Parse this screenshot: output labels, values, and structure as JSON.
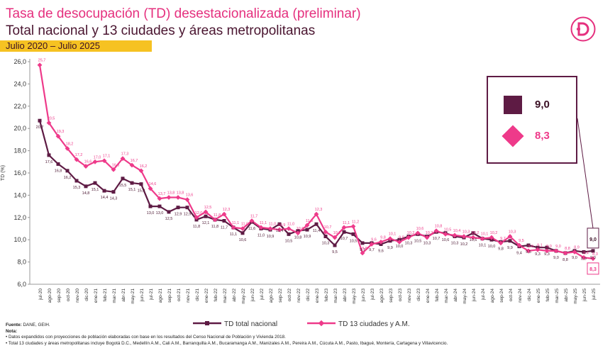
{
  "header": {
    "title": "Tasa de desocupación (TD) desestacionalizada (preliminar)",
    "subtitle": "Total nacional y 13 ciudades y áreas metropolitanas",
    "period": "Julio 2020 – Julio 2025"
  },
  "colors": {
    "series1": "#5e1b44",
    "series2": "#ee3a8a",
    "accent": "#f6c222"
  },
  "callout": {
    "value1": "9,0",
    "value2": "8,3"
  },
  "footer": {
    "source_label": "Fuente:",
    "source": " DANE, GEIH.",
    "note_label": "Nota",
    "note_colon": ":",
    "note1": "• Datos expandidos con proyecciones de población elaboradas con base en los resultados del Censo Nacional de Población y Vivienda 2018.",
    "note2": "• Total 13 ciudades y áreas metropolitanas incluye Bogotá D.C., Medellín A.M., Cali A.M., Barranquilla A.M., Bucaramanga A.M., Manizales A.M., Pereira A.M., Cúcuta A.M., Pasto, Ibagué, Montería, Cartagena y Villavicencio."
  },
  "chart_data": {
    "type": "line",
    "title": "Tasa de desocupación (TD) desestacionalizada (preliminar)",
    "ylabel": "TD (%)",
    "ylim": [
      6.0,
      26.0
    ],
    "yticks": [
      "6,0",
      "8,0",
      "10,0",
      "12,0",
      "14,0",
      "16,0",
      "18,0",
      "20,0",
      "22,0",
      "24,0",
      "26,0"
    ],
    "grid": false,
    "legend": "bottom",
    "x": [
      "jul-20",
      "ago-20",
      "sep-20",
      "oct-20",
      "nov-20",
      "dic-20",
      "ene-21",
      "feb-21",
      "mar-21",
      "abr-21",
      "may-21",
      "jun-21",
      "jul-21",
      "ago-21",
      "sep-21",
      "oct-21",
      "nov-21",
      "dic-21",
      "ene-22",
      "feb-22",
      "mar-22",
      "abr-22",
      "may-22",
      "jun-22",
      "jul-22",
      "ago-22",
      "sep-22",
      "oct-22",
      "nov-22",
      "dic-22",
      "ene-23",
      "feb-23",
      "mar-23",
      "abr-23",
      "may-23",
      "jun-23",
      "jul-23",
      "ago-23",
      "sep-23",
      "oct-23",
      "nov-23",
      "dic-23",
      "ene-24",
      "feb-24",
      "mar-24",
      "abr-24",
      "may-24",
      "jun-24",
      "jul-24",
      "ago-24",
      "sep-24",
      "oct-24",
      "nov-24",
      "dic-24",
      "ene-25",
      "feb-25",
      "mar-25",
      "abr-25",
      "may-25",
      "jun-25",
      "jul-25"
    ],
    "series": [
      {
        "name": "TD total nacional",
        "values": [
          20.7,
          17.6,
          16.8,
          16.2,
          15.3,
          14.8,
          15.1,
          14.4,
          14.3,
          15.5,
          15.1,
          15.0,
          13.0,
          13.0,
          12.5,
          12.9,
          12.9,
          11.8,
          12.1,
          11.8,
          11.7,
          11.1,
          10.6,
          11.6,
          11.0,
          10.9,
          11.4,
          10.5,
          10.8,
          10.9,
          11.4,
          10.3,
          9.5,
          10.7,
          10.5,
          9.7,
          9.7,
          9.6,
          9.9,
          10.0,
          10.3,
          10.5,
          10.3,
          10.7,
          10.6,
          10.3,
          10.2,
          10.6,
          10.1,
          10.0,
          9.8,
          9.9,
          9.4,
          9.5,
          9.3,
          9.3,
          9.0,
          8.8,
          9.0,
          8.9,
          9.0
        ]
      },
      {
        "name": "TD 13 ciudades y A.M.",
        "values": [
          25.7,
          20.5,
          19.3,
          18.2,
          17.2,
          16.6,
          17.0,
          17.1,
          16.3,
          17.3,
          16.7,
          16.2,
          14.6,
          13.7,
          13.8,
          13.8,
          13.6,
          12.0,
          12.5,
          11.8,
          12.3,
          11.1,
          11.0,
          11.7,
          11.1,
          11.0,
          10.9,
          11.0,
          10.6,
          11.3,
          12.3,
          10.7,
          10.2,
          11.1,
          11.2,
          8.8,
          9.6,
          9.8,
          10.1,
          9.8,
          10.2,
          10.6,
          10.2,
          10.8,
          10.5,
          10.4,
          10.3,
          10.2,
          10.1,
          10.2,
          9.7,
          10.3,
          9.5,
          9.0,
          9.1,
          9.0,
          9.0,
          8.8,
          8.9,
          8.4,
          8.3
        ]
      }
    ]
  }
}
